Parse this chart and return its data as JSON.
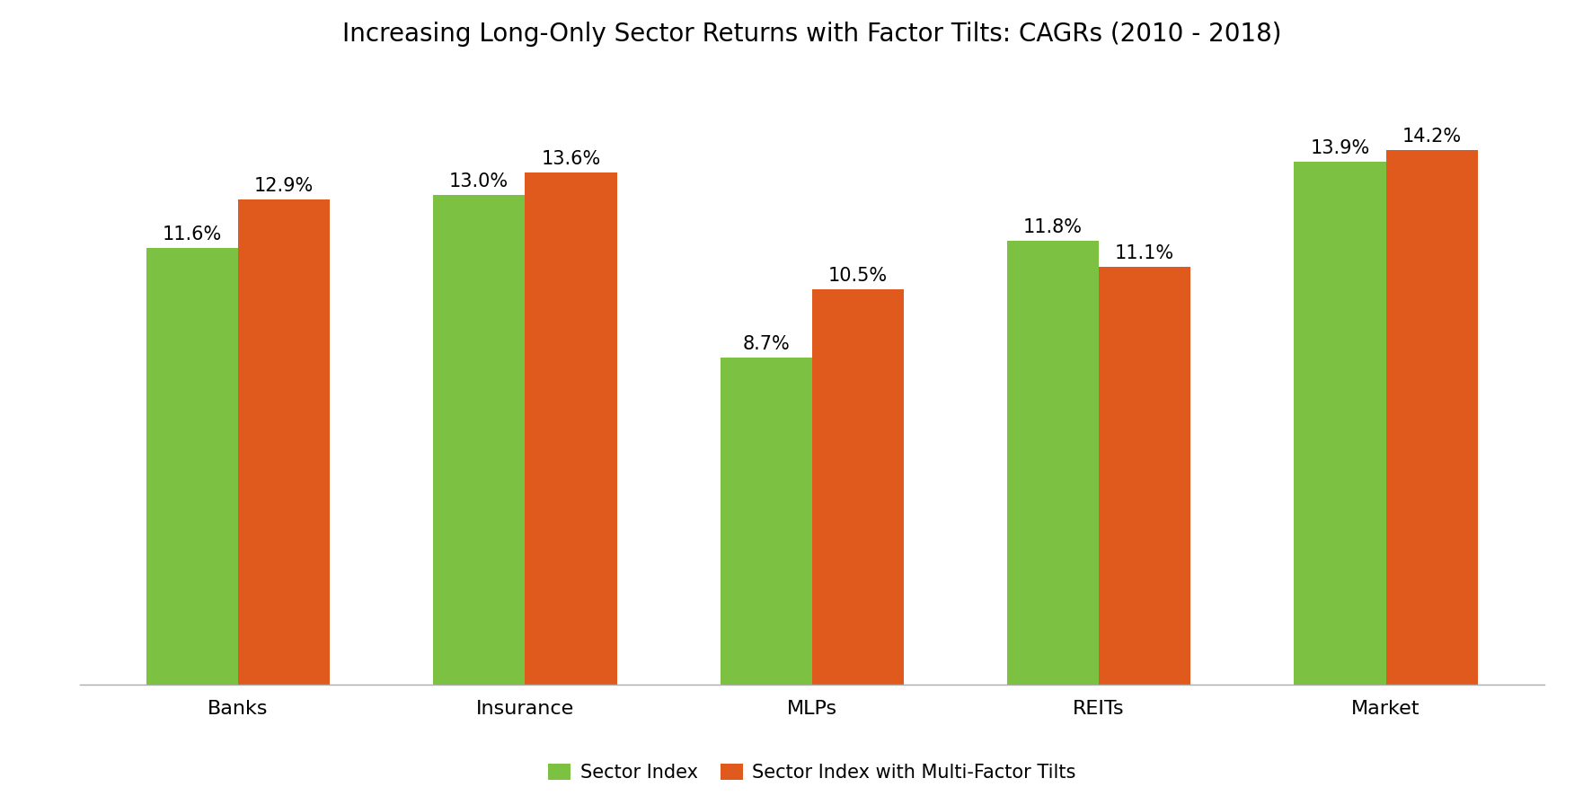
{
  "title": "Increasing Long-Only Sector Returns with Factor Tilts: CAGRs (2010 - 2018)",
  "categories": [
    "Banks",
    "Insurance",
    "MLPs",
    "REITs",
    "Market"
  ],
  "sector_index": [
    11.6,
    13.0,
    8.7,
    11.8,
    13.9
  ],
  "sector_index_tilts": [
    12.9,
    13.6,
    10.5,
    11.1,
    14.2
  ],
  "color_green": "#7DC142",
  "color_orange": "#E05A1D",
  "legend_label_green": "Sector Index",
  "legend_label_orange": "Sector Index with Multi-Factor Tilts",
  "bar_width": 0.32,
  "ylim": [
    0,
    16.5
  ],
  "title_fontsize": 20,
  "tick_fontsize": 16,
  "legend_fontsize": 15,
  "annotation_fontsize": 15,
  "background_color": "#ffffff"
}
